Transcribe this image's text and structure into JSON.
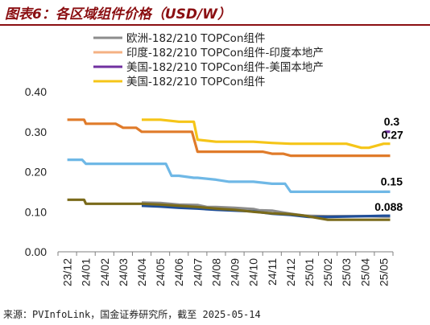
{
  "title": "图表6：各区域组件价格（USD/W）",
  "source": "来源：PVInfoLink，国金证券研究所，截至 2025-05-14",
  "chart_data": {
    "type": "line",
    "title": "图表6：各区域组件价格（USD/W）",
    "ylim": [
      0.0,
      0.4
    ],
    "yticks": [
      "0.00",
      "0.10",
      "0.20",
      "0.30",
      "0.40"
    ],
    "ytick_values": [
      0.0,
      0.1,
      0.2,
      0.3,
      0.4
    ],
    "categories": [
      "23/12",
      "24/01",
      "24/02",
      "24/03",
      "24/04",
      "24/05",
      "24/06",
      "24/07",
      "24/08",
      "24/09",
      "24/10",
      "24/11",
      "24/12",
      "25/01",
      "25/02",
      "25/03",
      "25/04",
      "25/05"
    ],
    "grid": false,
    "legend_position": "top",
    "series": [
      {
        "name": "欧洲-182/210 TOPCon组件",
        "color": "#8c8c8c",
        "x": [
          4.0,
          5.0,
          6.0,
          7.0,
          7.5,
          8.0,
          9.0,
          10.0,
          10.3,
          11.0,
          11.6,
          12.0,
          12.8,
          14.0,
          15.0,
          16.0,
          17.0,
          17.35
        ],
        "y": [
          0.123,
          0.122,
          0.118,
          0.117,
          0.112,
          0.112,
          0.11,
          0.107,
          0.104,
          0.103,
          0.098,
          0.095,
          0.09,
          0.089,
          0.089,
          0.089,
          0.088,
          0.088
        ]
      },
      {
        "name": "印度-182/210 TOPCon组件-印度本地产",
        "color": "#f4b183",
        "x": [
          17.0,
          17.35
        ],
        "y": [
          0.15,
          0.15
        ]
      },
      {
        "name": "美国-182/210 TOPCon组件-美国本地产",
        "color": "#7030a0",
        "x": [
          17.05,
          17.35
        ],
        "y": [
          0.3,
          0.3
        ]
      },
      {
        "name": "美国-182/210 TOPCon组件",
        "color": "#f5c518",
        "x": [
          4.0,
          5.0,
          6.0,
          6.8,
          7.0,
          8.0,
          9.0,
          10.0,
          11.0,
          12.0,
          13.0,
          14.0,
          15.0,
          15.8,
          16.2,
          17.0,
          17.35
        ],
        "y": [
          0.33,
          0.33,
          0.325,
          0.325,
          0.28,
          0.275,
          0.275,
          0.275,
          0.272,
          0.27,
          0.27,
          0.27,
          0.27,
          0.26,
          0.26,
          0.27,
          0.27
        ]
      },
      {
        "name": "",
        "color": "#e07b2a",
        "x": [
          0.0,
          0.9,
          1.0,
          2.0,
          2.6,
          3.0,
          3.7,
          4.0,
          5.0,
          6.0,
          6.7,
          7.0,
          8.0,
          9.0,
          10.0,
          10.5,
          11.0,
          11.6,
          12.0,
          13.0,
          14.0,
          15.0,
          16.0,
          17.0,
          17.35
        ],
        "y": [
          0.33,
          0.33,
          0.32,
          0.32,
          0.32,
          0.31,
          0.31,
          0.3,
          0.3,
          0.3,
          0.3,
          0.25,
          0.25,
          0.25,
          0.25,
          0.25,
          0.245,
          0.245,
          0.24,
          0.24,
          0.24,
          0.24,
          0.24,
          0.24,
          0.24
        ]
      },
      {
        "name": "",
        "color": "#6fb8e6",
        "x": [
          0.0,
          0.8,
          1.0,
          2.0,
          3.0,
          4.0,
          5.3,
          5.6,
          6.0,
          6.8,
          7.0,
          8.0,
          8.7,
          9.0,
          10.0,
          11.0,
          11.7,
          12.0,
          13.0,
          14.0,
          15.0,
          16.0,
          17.0,
          17.35
        ],
        "y": [
          0.23,
          0.23,
          0.22,
          0.22,
          0.22,
          0.22,
          0.22,
          0.19,
          0.19,
          0.185,
          0.185,
          0.18,
          0.175,
          0.175,
          0.175,
          0.17,
          0.17,
          0.15,
          0.15,
          0.15,
          0.15,
          0.15,
          0.15,
          0.15
        ]
      },
      {
        "name": "",
        "color": "#1f4e99",
        "x": [
          4.0,
          5.0,
          6.0,
          7.0,
          8.0,
          9.0,
          10.0,
          11.0,
          12.0,
          13.0,
          14.0,
          15.0,
          16.0,
          17.0,
          17.35
        ],
        "y": [
          0.115,
          0.113,
          0.11,
          0.108,
          0.105,
          0.103,
          0.101,
          0.095,
          0.092,
          0.087,
          0.087,
          0.088,
          0.089,
          0.09,
          0.09
        ]
      },
      {
        "name": "",
        "color": "#7a6a1a",
        "x": [
          0.0,
          0.9,
          1.0,
          2.0,
          3.0,
          4.0,
          5.0,
          6.0,
          7.0,
          8.0,
          9.0,
          10.0,
          11.0,
          12.0,
          12.8,
          13.0,
          14.0,
          15.0,
          16.0,
          17.0,
          17.35
        ],
        "y": [
          0.13,
          0.13,
          0.12,
          0.12,
          0.12,
          0.12,
          0.118,
          0.115,
          0.112,
          0.108,
          0.105,
          0.1,
          0.096,
          0.094,
          0.09,
          0.088,
          0.08,
          0.08,
          0.08,
          0.08,
          0.08
        ]
      }
    ],
    "data_labels": [
      {
        "text": "0.3",
        "x": 17.1,
        "y": 0.3
      },
      {
        "text": "0.27",
        "x": 17.05,
        "y": 0.27
      },
      {
        "text": "0.15",
        "x": 17.1,
        "y": 0.15
      },
      {
        "text": "0.088",
        "x": 16.6,
        "y": 0.088
      }
    ]
  }
}
